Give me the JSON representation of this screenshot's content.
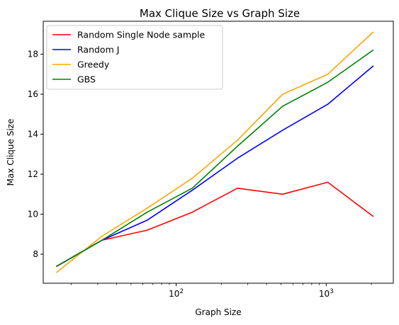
{
  "chart_data": {
    "type": "line",
    "title": "Max Clique Size vs Graph Size",
    "xlabel": "Graph Size",
    "ylabel": "Max Clique Size",
    "xscale": "log",
    "xlim": [
      13,
      2800
    ],
    "ylim": [
      6.55,
      19.65
    ],
    "grid": false,
    "legend_position": "top-left",
    "x": [
      16,
      32,
      64,
      128,
      256,
      512,
      1024,
      2048
    ],
    "x_ticks": [
      {
        "value": 100,
        "base": "10",
        "exp": "2"
      },
      {
        "value": 1000,
        "base": "10",
        "exp": "3"
      }
    ],
    "y_ticks": [
      8,
      10,
      12,
      14,
      16,
      18
    ],
    "series": [
      {
        "name": "Random Single Node sample",
        "color": "#ff0000",
        "values": [
          7.4,
          8.7,
          9.2,
          10.1,
          11.3,
          11.0,
          11.6,
          9.9
        ]
      },
      {
        "name": "Random J",
        "color": "#0000ff",
        "values": [
          7.4,
          8.7,
          9.7,
          11.2,
          12.8,
          14.2,
          15.5,
          17.4
        ]
      },
      {
        "name": "Greedy",
        "color": "#ffa500",
        "values": [
          7.1,
          8.9,
          10.3,
          11.8,
          13.7,
          16.0,
          17.0,
          19.1
        ]
      },
      {
        "name": "GBS",
        "color": "#008000",
        "values": [
          7.4,
          8.7,
          10.1,
          11.3,
          13.4,
          15.4,
          16.6,
          18.2
        ]
      }
    ]
  }
}
